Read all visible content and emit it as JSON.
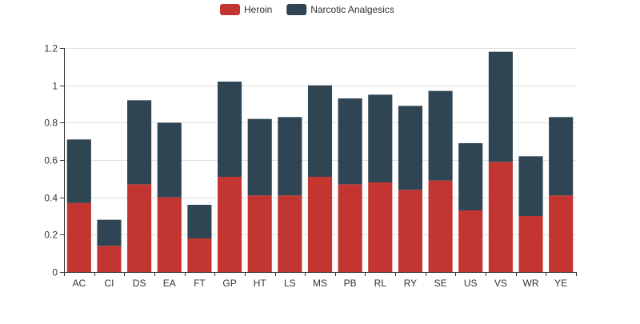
{
  "chart_data": {
    "type": "bar",
    "stacked": true,
    "title": "",
    "xlabel": "",
    "ylabel": "",
    "ylim": [
      0,
      1.2
    ],
    "yticks": [
      "0",
      "0.2",
      "0.4",
      "0.6",
      "0.8",
      "1",
      "1.2"
    ],
    "grid": true,
    "legend_position": "top-center",
    "categories": [
      "AC",
      "CI",
      "DS",
      "EA",
      "FT",
      "GP",
      "HT",
      "LS",
      "MS",
      "PB",
      "RL",
      "RY",
      "SE",
      "US",
      "VS",
      "WR",
      "YE"
    ],
    "series": [
      {
        "name": "Heroin",
        "color": "#c23531",
        "values": [
          0.37,
          0.14,
          0.47,
          0.4,
          0.18,
          0.51,
          0.41,
          0.41,
          0.51,
          0.47,
          0.48,
          0.44,
          0.49,
          0.33,
          0.59,
          0.3,
          0.41
        ]
      },
      {
        "name": "Narcotic Analgesics",
        "color": "#2f4554",
        "values": [
          0.34,
          0.14,
          0.45,
          0.4,
          0.18,
          0.51,
          0.41,
          0.42,
          0.49,
          0.46,
          0.47,
          0.45,
          0.48,
          0.36,
          0.59,
          0.32,
          0.42
        ]
      }
    ]
  }
}
